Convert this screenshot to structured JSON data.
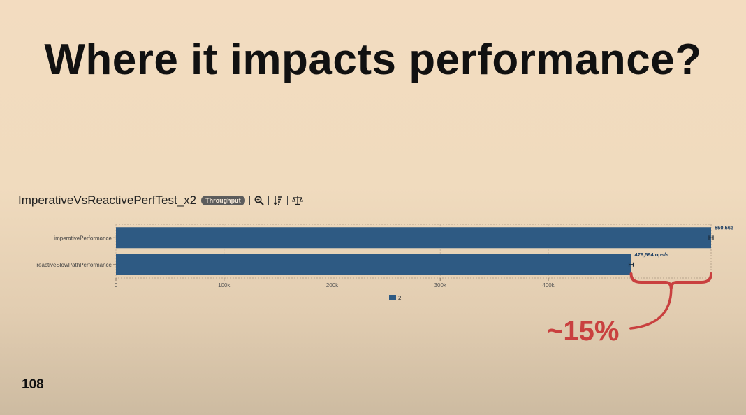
{
  "slide": {
    "title": "Where it impacts performance?",
    "page_number": "108",
    "annotation": "~15%"
  },
  "chart_header": {
    "name": "ImperativeVsReactivePerfTest_x2",
    "badge": "Throughput"
  },
  "colors": {
    "bar": "#2e5a83",
    "annotation": "#c9403f"
  },
  "chart_data": {
    "type": "bar",
    "orientation": "horizontal",
    "categories": [
      "imperativePerformance",
      "reactiveSlowPathPerformance"
    ],
    "series": [
      {
        "name": "2",
        "values": [
          550563,
          476594
        ]
      }
    ],
    "data_labels": [
      "550,563",
      "476,594 ops/s"
    ],
    "x_ticks": [
      "0",
      "100k",
      "200k",
      "300k",
      "400k"
    ],
    "xlim": [
      0,
      550563
    ],
    "legend_position": "bottom"
  }
}
